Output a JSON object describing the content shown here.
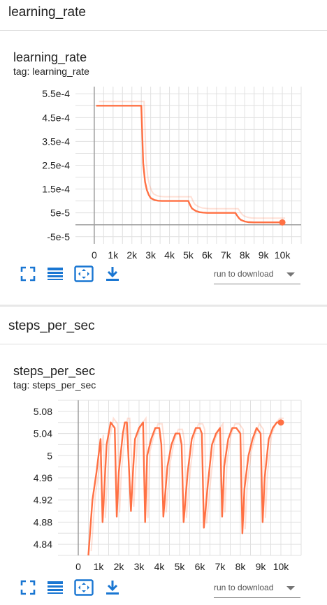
{
  "sections": [
    {
      "header": "learning_rate",
      "card": {
        "title": "learning_rate",
        "tag": "tag: learning_rate",
        "download_placeholder": "run to download",
        "chart_data": {
          "type": "line",
          "title": "learning_rate",
          "xlim": [
            -1000,
            11000
          ],
          "ylim": [
            -8e-05,
            0.00058
          ],
          "x_ticks": [
            0,
            1000,
            2000,
            3000,
            4000,
            5000,
            6000,
            7000,
            8000,
            9000,
            10000
          ],
          "x_tick_labels": [
            "0",
            "1k",
            "2k",
            "3k",
            "4k",
            "5k",
            "6k",
            "7k",
            "8k",
            "9k",
            "10k"
          ],
          "y_ticks": [
            0.00055,
            0.00045,
            0.00035,
            0.00025,
            0.00015,
            5e-05,
            -5e-05
          ],
          "y_tick_labels": [
            "5.5e-4",
            "4.5e-4",
            "3.5e-4",
            "2.5e-4",
            "1.5e-4",
            "5e-5",
            "-5e-5"
          ],
          "grid": true,
          "series": [
            {
              "color": "#ff7043",
              "x": [
                100,
                2400,
                2500,
                2550,
                2600,
                2700,
                2800,
                2900,
                3000,
                3200,
                3400,
                3600,
                3800,
                4000,
                4500,
                4900,
                5000,
                5100,
                5200,
                5400,
                5600,
                5800,
                6000,
                6500,
                7000,
                7400,
                7500,
                7600,
                7700,
                7800,
                8000,
                8200,
                8500,
                9000,
                9500,
                10000
              ],
              "y": [
                0.0005,
                0.0005,
                0.0005,
                0.00038,
                0.00026,
                0.00018,
                0.000145,
                0.000125,
                0.000112,
                0.000104,
                0.000101,
                0.0001,
                0.0001,
                0.0001,
                0.0001,
                0.0001,
                0.0001,
                8.2e-05,
                6.8e-05,
                5.8e-05,
                5.3e-05,
                5.1e-05,
                5e-05,
                5e-05,
                5e-05,
                5e-05,
                5e-05,
                3.8e-05,
                2.7e-05,
                2e-05,
                1.4e-05,
                1.1e-05,
                1e-05,
                1e-05,
                1e-05,
                1e-05
              ]
            }
          ],
          "last_point": [
            10000,
            1e-05
          ]
        }
      }
    },
    {
      "header": "steps_per_sec",
      "card": {
        "title": "steps_per_sec",
        "tag": "tag: steps_per_sec",
        "download_placeholder": "run to download",
        "chart_data": {
          "type": "line",
          "title": "steps_per_sec",
          "xlim": [
            -1000,
            11000
          ],
          "ylim": [
            4.82,
            5.1
          ],
          "x_ticks": [
            0,
            1000,
            2000,
            3000,
            4000,
            5000,
            6000,
            7000,
            8000,
            9000,
            10000
          ],
          "x_tick_labels": [
            "0",
            "1k",
            "2k",
            "3k",
            "4k",
            "5k",
            "6k",
            "7k",
            "8k",
            "9k",
            "10k"
          ],
          "y_ticks": [
            5.08,
            5.04,
            5.0,
            4.96,
            4.92,
            4.88,
            4.84
          ],
          "y_tick_labels": [
            "5.08",
            "5.04",
            "5",
            "4.96",
            "4.92",
            "4.88",
            "4.84"
          ],
          "grid": true,
          "series": [
            {
              "color": "#ff7043",
              "x": [
                500,
                700,
                900,
                1100,
                1200,
                1300,
                1400,
                1500,
                1600,
                1800,
                1900,
                2000,
                2200,
                2300,
                2400,
                2600,
                2700,
                2800,
                3000,
                3200,
                3300,
                3400,
                3600,
                3800,
                4000,
                4100,
                4200,
                4400,
                4600,
                4800,
                5000,
                5100,
                5200,
                5400,
                5600,
                5800,
                6000,
                6100,
                6200,
                6400,
                6600,
                6800,
                7000,
                7100,
                7200,
                7400,
                7600,
                7800,
                8000,
                8100,
                8200,
                8400,
                8600,
                8800,
                9000,
                9100,
                9200,
                9400,
                9600,
                9800,
                10000
              ],
              "y": [
                4.82,
                4.92,
                4.97,
                5.03,
                4.88,
                4.95,
                5.02,
                5.04,
                5.06,
                5.05,
                4.89,
                4.97,
                5.04,
                5.06,
                5.06,
                4.9,
                4.97,
                5.03,
                5.05,
                5.06,
                4.88,
                5.0,
                5.03,
                5.05,
                5.05,
                5.02,
                4.89,
                4.98,
                5.02,
                5.04,
                5.04,
                5.02,
                4.88,
                4.97,
                5.03,
                5.05,
                5.05,
                5.04,
                4.87,
                4.95,
                5.02,
                5.04,
                5.05,
                4.89,
                4.98,
                5.03,
                5.05,
                5.05,
                5.04,
                4.86,
                4.94,
                5.0,
                5.03,
                5.05,
                5.04,
                4.88,
                4.96,
                5.03,
                5.05,
                5.06,
                5.06
              ]
            }
          ],
          "last_point": [
            10000,
            5.06
          ]
        }
      }
    }
  ]
}
